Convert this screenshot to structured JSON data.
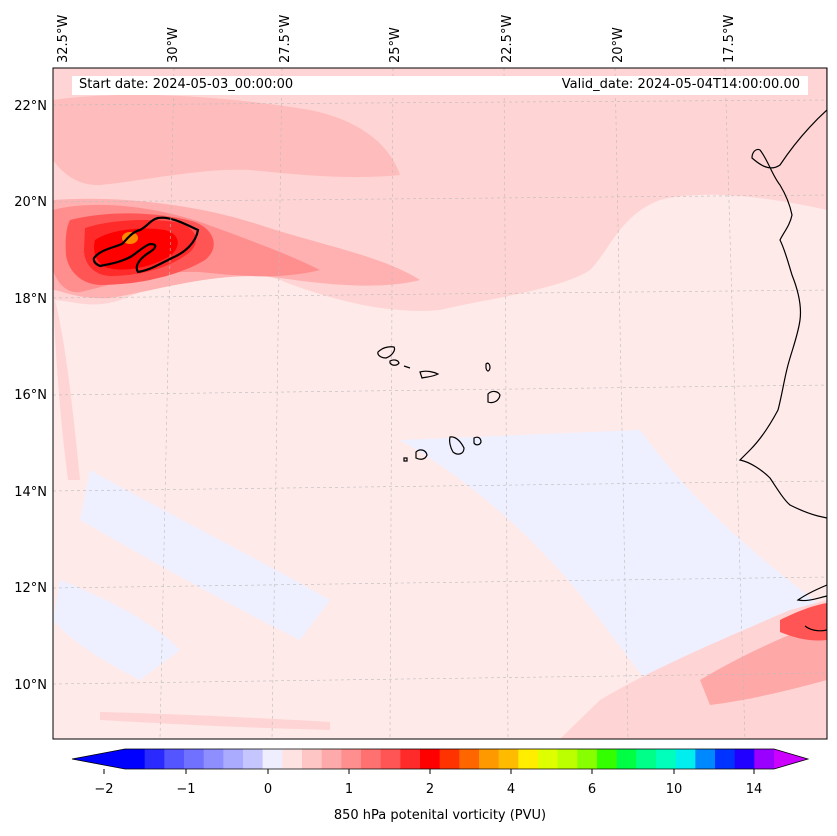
{
  "header": {
    "start_date": "Start date: 2024-05-03_00:00:00",
    "valid_date": "Valid_date: 2024-05-04T14:00:00.00"
  },
  "map": {
    "longitude_labels": [
      "32.5°W",
      "30°W",
      "27.5°W",
      "25°W",
      "22.5°W",
      "20°W",
      "17.5°W"
    ],
    "latitude_labels": [
      "22°N",
      "20°N",
      "18°N",
      "16°N",
      "14°N",
      "12°N",
      "10°N"
    ],
    "features": [
      "cape-verde-islands",
      "west-africa-coastline",
      "pv-contour-1pvu"
    ]
  },
  "colorbar": {
    "title": "850 hPa potenital vorticity (PVU)",
    "tick_labels": [
      "−2",
      "−1",
      "0",
      "1",
      "2",
      "4",
      "6",
      "10",
      "14"
    ],
    "colors": [
      "#0000ff",
      "#2a2aff",
      "#5555ff",
      "#7171ff",
      "#8e8eff",
      "#aaaaff",
      "#c6c6ff",
      "#eeeeff",
      "#ffe3e3",
      "#ffc6c6",
      "#ffaaaa",
      "#ff8e8e",
      "#ff7171",
      "#ff5555",
      "#ff2a2a",
      "#ff0000",
      "#ff3300",
      "#ff6600",
      "#ff9900",
      "#ffbb00",
      "#ffee00",
      "#ddff00",
      "#bbff00",
      "#88ff00",
      "#33ff00",
      "#00ff44",
      "#00ff88",
      "#00ffbb",
      "#00eeee",
      "#0088ff",
      "#0033ff",
      "#2200ff",
      "#9900ff"
    ],
    "extend_low_color": "#0000ff",
    "extend_high_color": "#cc00ff"
  }
}
